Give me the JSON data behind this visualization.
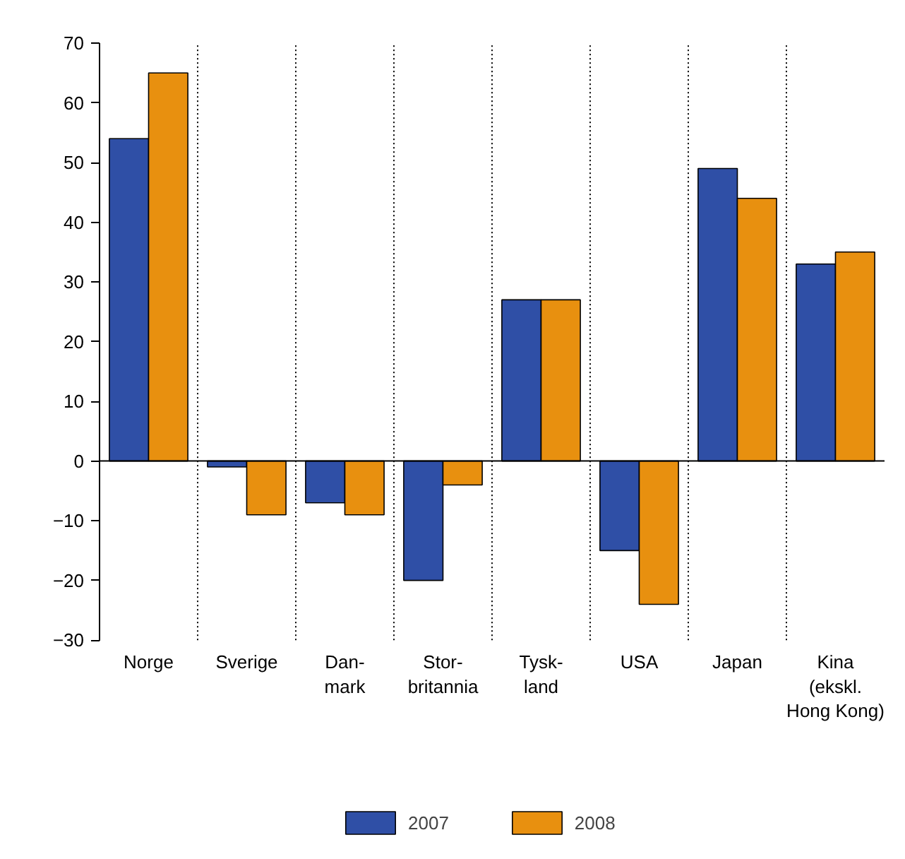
{
  "chart_data": {
    "type": "bar",
    "categories": [
      "Norge",
      "Sverige",
      "Dan-\nmark",
      "Stor-\nbritannia",
      "Tysk-\nland",
      "USA",
      "Japan",
      "Kina\n(ekskl.\nHong Kong)"
    ],
    "series": [
      {
        "name": "2007",
        "color": "#2f4fa6",
        "values": [
          54,
          -1,
          -7,
          -20,
          27,
          -15,
          49,
          33
        ]
      },
      {
        "name": "2008",
        "color": "#e8900f",
        "values": [
          65,
          -9,
          -9,
          -4,
          27,
          -24,
          44,
          35
        ]
      }
    ],
    "ylim": [
      -30,
      70
    ],
    "yticks": [
      -30,
      -20,
      -10,
      0,
      10,
      20,
      30,
      40,
      50,
      60,
      70
    ],
    "grid": "x",
    "legend": "bottom"
  }
}
